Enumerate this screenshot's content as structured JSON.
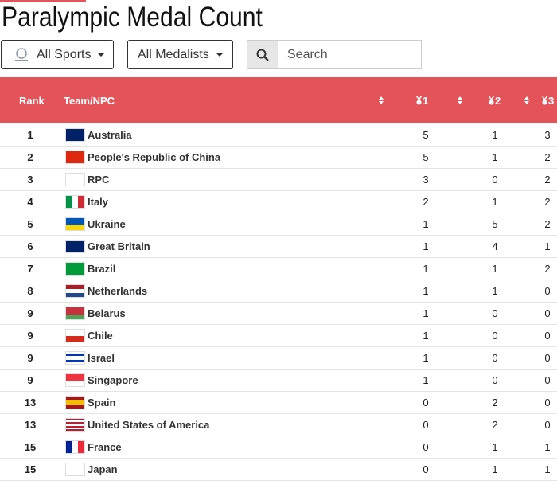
{
  "header": {
    "title": "Paralympic Medal Count"
  },
  "filters": {
    "sports": "All Sports",
    "medalists": "All Medalists",
    "search_placeholder": "Search"
  },
  "table": {
    "columns": [
      "Rank",
      "Team/NPC",
      "1",
      "2",
      "3"
    ],
    "rows": [
      {
        "rank": 1,
        "team": "Australia",
        "gold": 5,
        "silver": 1,
        "bronze": 3
      },
      {
        "rank": 2,
        "team": "People's Republic of China",
        "gold": 5,
        "silver": 1,
        "bronze": 2
      },
      {
        "rank": 3,
        "team": "RPC",
        "gold": 3,
        "silver": 0,
        "bronze": 2
      },
      {
        "rank": 4,
        "team": "Italy",
        "gold": 2,
        "silver": 1,
        "bronze": 2
      },
      {
        "rank": 5,
        "team": "Ukraine",
        "gold": 1,
        "silver": 5,
        "bronze": 2
      },
      {
        "rank": 6,
        "team": "Great Britain",
        "gold": 1,
        "silver": 4,
        "bronze": 1
      },
      {
        "rank": 7,
        "team": "Brazil",
        "gold": 1,
        "silver": 1,
        "bronze": 2
      },
      {
        "rank": 8,
        "team": "Netherlands",
        "gold": 1,
        "silver": 1,
        "bronze": 0
      },
      {
        "rank": 9,
        "team": "Belarus",
        "gold": 1,
        "silver": 0,
        "bronze": 0
      },
      {
        "rank": 9,
        "team": "Chile",
        "gold": 1,
        "silver": 0,
        "bronze": 0
      },
      {
        "rank": 9,
        "team": "Israel",
        "gold": 1,
        "silver": 0,
        "bronze": 0
      },
      {
        "rank": 9,
        "team": "Singapore",
        "gold": 1,
        "silver": 0,
        "bronze": 0
      },
      {
        "rank": 13,
        "team": "Spain",
        "gold": 0,
        "silver": 2,
        "bronze": 0
      },
      {
        "rank": 13,
        "team": "United States of America",
        "gold": 0,
        "silver": 2,
        "bronze": 0
      },
      {
        "rank": 15,
        "team": "France",
        "gold": 0,
        "silver": 1,
        "bronze": 1
      },
      {
        "rank": 15,
        "team": "Japan",
        "gold": 0,
        "silver": 1,
        "bronze": 1
      }
    ]
  }
}
